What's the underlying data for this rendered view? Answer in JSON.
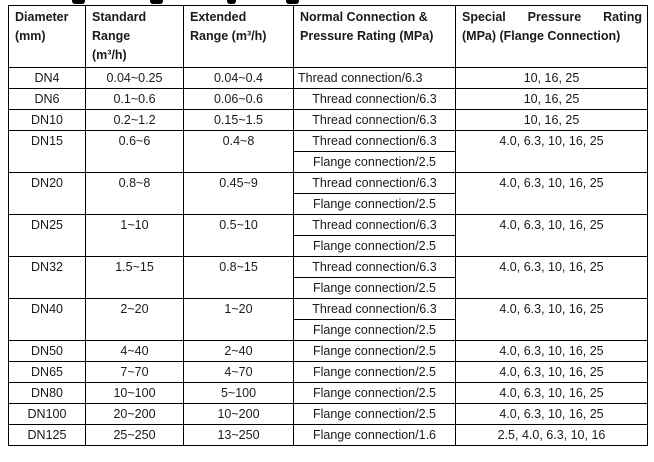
{
  "page": {
    "background": "#ffffff",
    "text_color": "#1a1a1a",
    "border_color": "#000000"
  },
  "table": {
    "columns": [
      {
        "id": "diameter",
        "lines": [
          "Diameter",
          "(mm)"
        ]
      },
      {
        "id": "standard",
        "lines": [
          "Standard",
          "Range",
          "(m³/h)"
        ]
      },
      {
        "id": "extended",
        "lines": [
          "Extended",
          "Range (m³/h)"
        ]
      },
      {
        "id": "normal",
        "lines": [
          "Normal Connection &",
          "Pressure Rating (MPa)"
        ]
      },
      {
        "id": "special",
        "lines": [
          "Special Pressure Rating",
          "(MPa) (Flange Connection)"
        ],
        "justify_lines": [
          0
        ]
      }
    ],
    "rows": [
      {
        "diameter": "DN4",
        "standard": "0.04~0.25",
        "extended": "0.04~0.4",
        "connections": [
          "Thread connection/6.3"
        ],
        "special": "10, 16, 25",
        "connection_align": "left"
      },
      {
        "diameter": "DN6",
        "standard": "0.1~0.6",
        "extended": "0.06~0.6",
        "connections": [
          "Thread connection/6.3"
        ],
        "special": "10, 16, 25"
      },
      {
        "diameter": "DN10",
        "standard": "0.2~1.2",
        "extended": "0.15~1.5",
        "connections": [
          "Thread connection/6.3"
        ],
        "special": "10, 16, 25"
      },
      {
        "diameter": "DN15",
        "standard": "0.6~6",
        "extended": "0.4~8",
        "connections": [
          "Thread connection/6.3",
          "Flange connection/2.5"
        ],
        "special": "4.0, 6.3, 10, 16, 25"
      },
      {
        "diameter": "DN20",
        "standard": "0.8~8",
        "extended": "0.45~9",
        "connections": [
          "Thread connection/6.3",
          "Flange connection/2.5"
        ],
        "special": "4.0, 6.3, 10, 16, 25"
      },
      {
        "diameter": "DN25",
        "standard": "1~10",
        "extended": "0.5~10",
        "connections": [
          "Thread connection/6.3",
          "Flange connection/2.5"
        ],
        "special": "4.0, 6.3, 10, 16, 25"
      },
      {
        "diameter": "DN32",
        "standard": "1.5~15",
        "extended": "0.8~15",
        "connections": [
          "Thread connection/6.3",
          "Flange connection/2.5"
        ],
        "special": "4.0, 6.3, 10, 16, 25"
      },
      {
        "diameter": "DN40",
        "standard": "2~20",
        "extended": "1~20",
        "connections": [
          "Thread connection/6.3",
          "Flange connection/2.5"
        ],
        "special": "4.0, 6.3, 10, 16, 25"
      },
      {
        "diameter": "DN50",
        "standard": "4~40",
        "extended": "2~40",
        "connections": [
          "Flange connection/2.5"
        ],
        "special": "4.0, 6.3, 10, 16, 25"
      },
      {
        "diameter": "DN65",
        "standard": "7~70",
        "extended": "4~70",
        "connections": [
          "Flange connection/2.5"
        ],
        "special": "4.0, 6.3, 10, 16, 25"
      },
      {
        "diameter": "DN80",
        "standard": "10~100",
        "extended": "5~100",
        "connections": [
          "Flange connection/2.5"
        ],
        "special": "4.0, 6.3, 10, 16, 25"
      },
      {
        "diameter": "DN100",
        "standard": "20~200",
        "extended": "10~200",
        "connections": [
          "Flange connection/2.5"
        ],
        "special": "4.0, 6.3, 10, 16, 25"
      },
      {
        "diameter": "DN125",
        "standard": "25~250",
        "extended": "13~250",
        "connections": [
          "Flange connection/1.6"
        ],
        "special": "2.5, 4.0, 6.3, 10, 16"
      }
    ]
  }
}
